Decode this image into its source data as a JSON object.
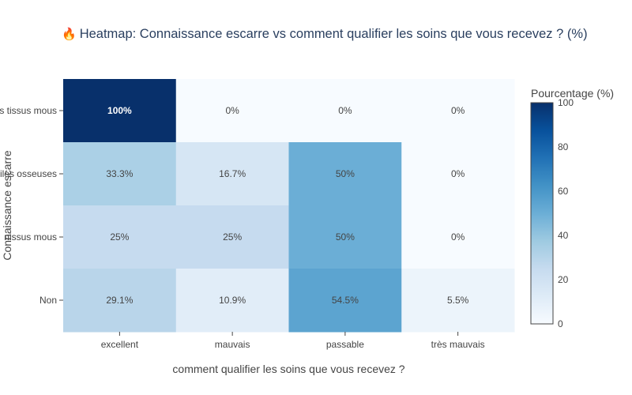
{
  "chart_data": {
    "type": "heatmap",
    "title": "Heatmap: Connaissance escarre vs comment qualifier les soins que vous recevez ? (%)",
    "title_icon": "fire-icon",
    "xlabel": "comment qualifier les soins que vous recevez ?",
    "ylabel": "Connaissance escarre",
    "x_categories": [
      "excellent",
      "mauvais",
      "passable",
      "très mauvais"
    ],
    "y_categories": [
      "s tissus mous",
      "iles osseuses",
      "nissus mous",
      "Non"
    ],
    "values": [
      [
        100,
        0,
        0,
        0
      ],
      [
        33.3,
        16.7,
        50,
        0
      ],
      [
        25,
        25,
        50,
        0
      ],
      [
        29.1,
        10.9,
        54.5,
        5.5
      ]
    ],
    "cell_labels": [
      [
        "100%",
        "0%",
        "0%",
        "0%"
      ],
      [
        "33.3%",
        "16.7%",
        "50%",
        "0%"
      ],
      [
        "25%",
        "25%",
        "50%",
        "0%"
      ],
      [
        "29.1%",
        "10.9%",
        "54.5%",
        "5.5%"
      ]
    ],
    "colorscale": "Blues",
    "colorbar": {
      "title": "Pourcentage (%)",
      "range": [
        0,
        100
      ],
      "ticks": [
        "0",
        "20",
        "40",
        "60",
        "80",
        "100"
      ]
    }
  }
}
